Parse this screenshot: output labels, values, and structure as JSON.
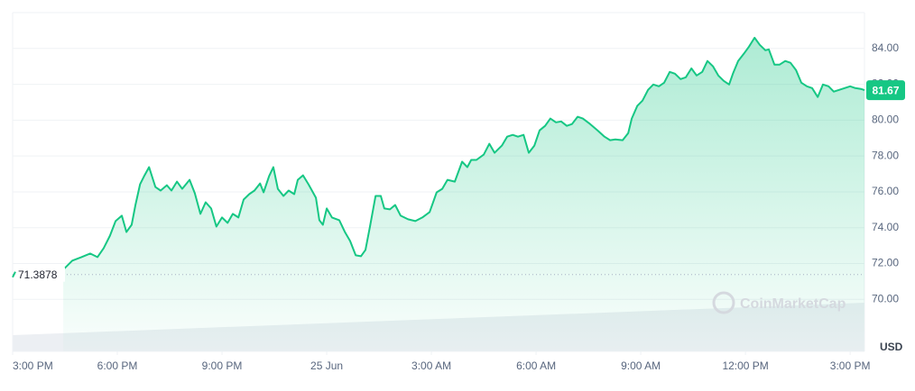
{
  "chart_data": {
    "type": "line",
    "x": [
      1.45,
      1.71,
      1.97,
      2.22,
      2.43,
      2.61,
      2.79,
      2.95,
      3.13,
      3.26,
      3.41,
      3.52,
      3.65,
      3.78,
      3.91,
      4.09,
      4.24,
      4.42,
      4.55,
      4.71,
      4.86,
      5.07,
      5.22,
      5.38,
      5.53,
      5.69,
      5.84,
      6.0,
      6.16,
      6.31,
      6.47,
      6.62,
      6.78,
      6.93,
      7.09,
      7.19,
      7.35,
      7.47,
      7.6,
      7.76,
      7.91,
      8.07,
      8.17,
      8.32,
      8.48,
      8.69,
      8.79,
      8.89,
      9.0,
      9.15,
      9.36,
      9.52,
      9.67,
      9.83,
      9.98,
      10.11,
      10.24,
      10.4,
      10.55,
      10.65,
      10.81,
      10.96,
      11.12,
      11.33,
      11.54,
      11.74,
      11.95,
      12.15,
      12.31,
      12.46,
      12.67,
      12.88,
      13.03,
      13.14,
      13.29,
      13.5,
      13.66,
      13.81,
      14.02,
      14.17,
      14.33,
      14.48,
      14.64,
      14.79,
      14.95,
      15.1,
      15.26,
      15.41,
      15.57,
      15.72,
      15.88,
      16.03,
      16.19,
      16.34,
      16.55,
      16.76,
      16.96,
      17.12,
      17.27,
      17.48,
      17.64,
      17.74,
      17.9,
      18.05,
      18.21,
      18.36,
      18.52,
      18.67,
      18.83,
      18.98,
      19.14,
      19.29,
      19.45,
      19.6,
      19.76,
      19.91,
      20.07,
      20.22,
      20.38,
      20.53,
      20.64,
      20.79,
      20.95,
      21.1,
      21.26,
      21.41,
      21.57,
      21.67,
      21.83,
      21.98,
      22.14,
      22.29,
      22.45,
      22.6,
      22.76,
      22.91,
      23.07,
      23.22,
      23.38,
      23.53,
      23.69,
      23.84,
      24.0,
      24.15,
      24.31,
      24.41
    ],
    "series": [
      {
        "name": "USD",
        "color": "#16c784",
        "values": [
          71.66,
          72.16,
          72.36,
          72.56,
          72.36,
          72.86,
          73.56,
          74.37,
          74.67,
          73.76,
          74.16,
          75.27,
          76.42,
          76.92,
          77.38,
          76.27,
          76.07,
          76.37,
          76.07,
          76.57,
          76.17,
          76.67,
          75.92,
          74.77,
          75.42,
          75.07,
          74.06,
          74.57,
          74.27,
          74.77,
          74.57,
          75.57,
          75.87,
          76.07,
          76.47,
          75.97,
          76.87,
          77.38,
          76.17,
          75.77,
          76.07,
          75.87,
          76.67,
          76.92,
          76.42,
          75.67,
          74.42,
          74.16,
          75.07,
          74.57,
          74.42,
          73.76,
          73.26,
          72.46,
          72.41,
          72.76,
          74.06,
          75.77,
          75.77,
          75.07,
          75.02,
          75.27,
          74.67,
          74.47,
          74.37,
          74.57,
          74.87,
          75.97,
          76.17,
          76.67,
          76.57,
          77.68,
          77.38,
          77.78,
          77.78,
          78.08,
          78.68,
          78.18,
          78.58,
          79.08,
          79.18,
          79.08,
          79.18,
          78.18,
          78.58,
          79.43,
          79.68,
          80.09,
          79.88,
          79.93,
          79.68,
          79.78,
          80.19,
          80.09,
          79.78,
          79.43,
          79.08,
          78.88,
          78.93,
          78.88,
          79.28,
          80.09,
          80.79,
          81.09,
          81.69,
          81.99,
          81.89,
          82.09,
          82.69,
          82.59,
          82.29,
          82.39,
          82.89,
          82.49,
          82.69,
          83.3,
          83.0,
          82.49,
          82.19,
          81.99,
          82.59,
          83.3,
          83.7,
          84.1,
          84.6,
          84.2,
          83.9,
          83.95,
          83.1,
          83.1,
          83.3,
          83.2,
          82.79,
          82.09,
          81.89,
          81.79,
          81.29,
          81.99,
          81.89,
          81.59,
          81.69,
          81.79,
          81.89,
          81.79,
          81.74,
          81.67
        ]
      }
    ],
    "xlim": [
      0,
      24.41
    ],
    "xticks": [
      {
        "value": 0,
        "label": "3:00 PM"
      },
      {
        "value": 3,
        "label": "6:00 PM"
      },
      {
        "value": 6,
        "label": "9:00 PM"
      },
      {
        "value": 9,
        "label": "25 Jun"
      },
      {
        "value": 12,
        "label": "3:00 AM"
      },
      {
        "value": 15,
        "label": "6:00 AM"
      },
      {
        "value": 18,
        "label": "9:00 AM"
      },
      {
        "value": 21,
        "label": "12:00 PM"
      },
      {
        "value": 24,
        "label": "3:00 PM"
      }
    ],
    "ylim": [
      67.1,
      86
    ],
    "yticks": [
      {
        "value": 70,
        "label": "70.00"
      },
      {
        "value": 72,
        "label": "72.00"
      },
      {
        "value": 74,
        "label": "74.00"
      },
      {
        "value": 76,
        "label": "76.00"
      },
      {
        "value": 78,
        "label": "78.00"
      },
      {
        "value": 80,
        "label": "80.00"
      },
      {
        "value": 82,
        "label": "82.00"
      },
      {
        "value": 84,
        "label": "84.00"
      }
    ],
    "y_axis_label": "USD",
    "reference_value": 71.3878,
    "current_price": 81.67,
    "watermark": "CoinMarketCap",
    "grid": true
  }
}
